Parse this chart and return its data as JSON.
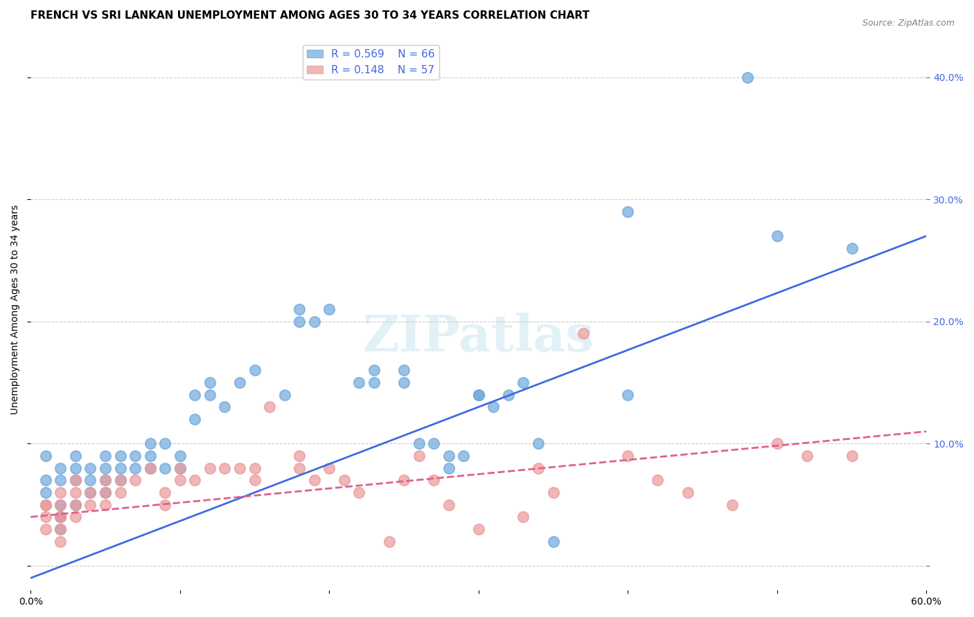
{
  "title": "FRENCH VS SRI LANKAN UNEMPLOYMENT AMONG AGES 30 TO 34 YEARS CORRELATION CHART",
  "source": "Source: ZipAtlas.com",
  "ylabel": "Unemployment Among Ages 30 to 34 years",
  "xlabel": "",
  "xlim": [
    0.0,
    0.6
  ],
  "ylim": [
    -0.02,
    0.44
  ],
  "xticks": [
    0.0,
    0.1,
    0.2,
    0.3,
    0.4,
    0.5,
    0.6
  ],
  "yticks": [
    0.0,
    0.1,
    0.2,
    0.3,
    0.4
  ],
  "ytick_labels": [
    "",
    "10.0%",
    "20.0%",
    "30.0%",
    "40.0%"
  ],
  "xtick_labels": [
    "0.0%",
    "",
    "",
    "",
    "",
    "",
    "60.0%"
  ],
  "watermark": "ZIPatlas",
  "french_R": "0.569",
  "french_N": "66",
  "srilankan_R": "0.148",
  "srilankan_N": "57",
  "french_color": "#6fa8dc",
  "srilankan_color": "#ea9999",
  "trendline_french_color": "#4169e1",
  "trendline_srilankan_color": "#e06090",
  "french_scatter_x": [
    0.01,
    0.01,
    0.01,
    0.02,
    0.02,
    0.02,
    0.02,
    0.02,
    0.02,
    0.03,
    0.03,
    0.03,
    0.03,
    0.04,
    0.04,
    0.04,
    0.05,
    0.05,
    0.05,
    0.05,
    0.06,
    0.06,
    0.06,
    0.07,
    0.07,
    0.08,
    0.08,
    0.08,
    0.09,
    0.09,
    0.1,
    0.1,
    0.11,
    0.11,
    0.12,
    0.12,
    0.13,
    0.14,
    0.15,
    0.17,
    0.18,
    0.18,
    0.19,
    0.2,
    0.22,
    0.23,
    0.23,
    0.25,
    0.25,
    0.26,
    0.27,
    0.28,
    0.28,
    0.29,
    0.3,
    0.3,
    0.31,
    0.32,
    0.33,
    0.34,
    0.35,
    0.4,
    0.4,
    0.48,
    0.5,
    0.55
  ],
  "french_scatter_y": [
    0.09,
    0.07,
    0.06,
    0.08,
    0.07,
    0.05,
    0.04,
    0.04,
    0.03,
    0.09,
    0.08,
    0.07,
    0.05,
    0.08,
    0.07,
    0.06,
    0.09,
    0.08,
    0.07,
    0.06,
    0.09,
    0.08,
    0.07,
    0.09,
    0.08,
    0.1,
    0.09,
    0.08,
    0.1,
    0.08,
    0.09,
    0.08,
    0.14,
    0.12,
    0.15,
    0.14,
    0.13,
    0.15,
    0.16,
    0.14,
    0.21,
    0.2,
    0.2,
    0.21,
    0.15,
    0.16,
    0.15,
    0.16,
    0.15,
    0.1,
    0.1,
    0.09,
    0.08,
    0.09,
    0.14,
    0.14,
    0.13,
    0.14,
    0.15,
    0.1,
    0.02,
    0.14,
    0.29,
    0.4,
    0.27,
    0.26
  ],
  "srilankan_scatter_x": [
    0.01,
    0.01,
    0.01,
    0.01,
    0.02,
    0.02,
    0.02,
    0.02,
    0.02,
    0.02,
    0.03,
    0.03,
    0.03,
    0.03,
    0.04,
    0.04,
    0.05,
    0.05,
    0.05,
    0.06,
    0.06,
    0.07,
    0.08,
    0.09,
    0.09,
    0.1,
    0.1,
    0.11,
    0.12,
    0.13,
    0.14,
    0.15,
    0.15,
    0.16,
    0.18,
    0.18,
    0.19,
    0.2,
    0.21,
    0.22,
    0.24,
    0.25,
    0.26,
    0.27,
    0.28,
    0.3,
    0.33,
    0.34,
    0.35,
    0.37,
    0.4,
    0.42,
    0.44,
    0.47,
    0.5,
    0.52,
    0.55
  ],
  "srilankan_scatter_y": [
    0.05,
    0.05,
    0.04,
    0.03,
    0.06,
    0.05,
    0.04,
    0.04,
    0.03,
    0.02,
    0.07,
    0.06,
    0.05,
    0.04,
    0.06,
    0.05,
    0.07,
    0.06,
    0.05,
    0.07,
    0.06,
    0.07,
    0.08,
    0.06,
    0.05,
    0.08,
    0.07,
    0.07,
    0.08,
    0.08,
    0.08,
    0.08,
    0.07,
    0.13,
    0.09,
    0.08,
    0.07,
    0.08,
    0.07,
    0.06,
    0.02,
    0.07,
    0.09,
    0.07,
    0.05,
    0.03,
    0.04,
    0.08,
    0.06,
    0.19,
    0.09,
    0.07,
    0.06,
    0.05,
    0.1,
    0.09,
    0.09
  ],
  "french_trend_x": [
    0.0,
    0.6
  ],
  "french_trend_y": [
    -0.01,
    0.27
  ],
  "srilankan_trend_x": [
    0.0,
    0.6
  ],
  "srilankan_trend_y": [
    0.04,
    0.11
  ],
  "background_color": "#ffffff",
  "grid_color": "#cccccc",
  "title_fontsize": 11,
  "label_fontsize": 10,
  "tick_fontsize": 10,
  "legend_fontsize": 11
}
